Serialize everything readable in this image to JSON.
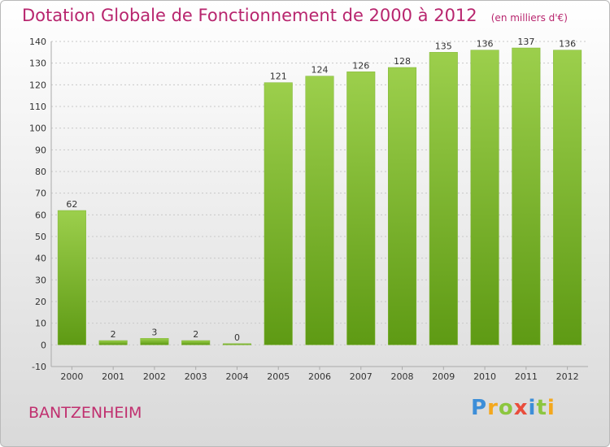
{
  "header": {
    "title": "Dotation Globale de Fonctionnement de 2000 à 2012",
    "subtitle": "(en milliers d'€)"
  },
  "footer": {
    "commune": "BANTZENHEIM",
    "logo_text": "Proxiti",
    "logo_letters": [
      {
        "char": "P",
        "color": "#3d8ed8"
      },
      {
        "char": "r",
        "color": "#f4a81d"
      },
      {
        "char": "o",
        "color": "#8cc63f"
      },
      {
        "char": "x",
        "color": "#e94d3c"
      },
      {
        "char": "i",
        "color": "#3d8ed8"
      },
      {
        "char": "t",
        "color": "#8cc63f"
      },
      {
        "char": "i",
        "color": "#f4a81d"
      }
    ]
  },
  "colors": {
    "bar_top": "#9ccf4c",
    "bar_bottom": "#5e9a14",
    "title": "#b8256e",
    "grid": "#c8c8c8",
    "text": "#333333"
  },
  "chart_data": {
    "type": "bar",
    "title": "Dotation Globale de Fonctionnement de 2000 à 2012",
    "subtitle": "(en milliers d'€)",
    "xlabel": "",
    "ylabel": "",
    "categories": [
      "2000",
      "2001",
      "2002",
      "2003",
      "2004",
      "2005",
      "2006",
      "2007",
      "2008",
      "2009",
      "2010",
      "2011",
      "2012"
    ],
    "values": [
      62,
      2,
      3,
      2,
      0,
      121,
      124,
      126,
      128,
      135,
      136,
      137,
      136
    ],
    "ylim": [
      -10,
      140
    ],
    "yticks": [
      -10,
      0,
      10,
      20,
      30,
      40,
      50,
      60,
      70,
      80,
      90,
      100,
      110,
      120,
      130,
      140
    ],
    "grid": true,
    "legend": "none"
  }
}
